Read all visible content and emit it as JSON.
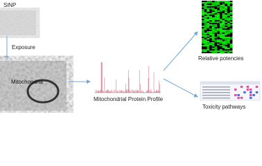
{
  "nodes": [
    {
      "label": "SiNP"
    },
    {
      "label": "Exposure"
    },
    {
      "label": "Mitochondria"
    },
    {
      "label": "Mitochondrial Protein Profile"
    },
    {
      "label": "Relative potencies"
    },
    {
      "label": "Toxicity pathways"
    }
  ]
}
